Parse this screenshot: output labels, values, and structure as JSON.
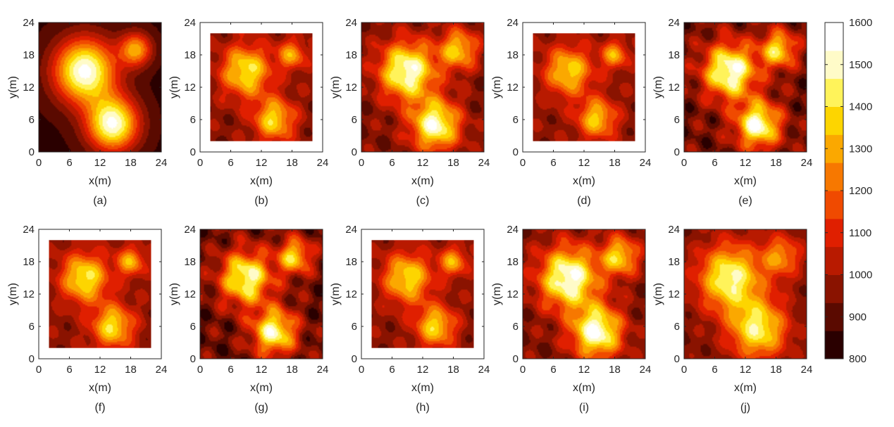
{
  "chart_data": {
    "type": "heatmap",
    "colorbar": {
      "min": 800,
      "max": 1600,
      "ticks": [
        "1600",
        "1500",
        "1400",
        "1300",
        "1200",
        "1100",
        "1000",
        "900",
        "800"
      ],
      "colors": [
        "#2a0000",
        "#5a0a00",
        "#8a1300",
        "#b81a00",
        "#e01f00",
        "#f04a00",
        "#f77800",
        "#fba800",
        "#fdd500",
        "#fff35a",
        "#fffbc8",
        "#ffffff"
      ]
    },
    "axes": {
      "xlabel": "x(m)",
      "ylabel": "y(m)",
      "xlim": [
        0,
        24
      ],
      "ylim": [
        0,
        24
      ],
      "ticks": [
        "0",
        "6",
        "12",
        "18",
        "24"
      ]
    },
    "panels": [
      {
        "label": "(a)",
        "domain": [
          0,
          24
        ],
        "sources": [
          [
            9,
            15,
            1560,
            4.2
          ],
          [
            14.5,
            5.2,
            1540,
            3.5
          ],
          [
            19,
            19,
            1300,
            2.2
          ]
        ],
        "base": 850,
        "ripple": 0
      },
      {
        "label": "(b)",
        "domain": [
          2,
          22
        ],
        "sources": [
          [
            9,
            15,
            1420,
            3.4
          ],
          [
            14.5,
            6,
            1380,
            2.8
          ],
          [
            18,
            18,
            1280,
            2.0
          ]
        ],
        "base": 960,
        "ripple": 70
      },
      {
        "label": "(c)",
        "domain": [
          0,
          24
        ],
        "sources": [
          [
            9,
            15,
            1540,
            3.8
          ],
          [
            14.5,
            5,
            1520,
            3.3
          ],
          [
            19,
            19,
            1360,
            2.6
          ]
        ],
        "base": 950,
        "ripple": 80
      },
      {
        "label": "(d)",
        "domain": [
          2,
          22
        ],
        "sources": [
          [
            9,
            15,
            1380,
            3.2
          ],
          [
            14.5,
            6.2,
            1360,
            2.6
          ],
          [
            18,
            18,
            1300,
            1.8
          ]
        ],
        "base": 970,
        "ripple": 65
      },
      {
        "label": "(e)",
        "domain": [
          0,
          24
        ],
        "sources": [
          [
            9,
            15,
            1560,
            3.6
          ],
          [
            14.5,
            5,
            1540,
            3.0
          ],
          [
            18.5,
            19,
            1400,
            2.4
          ]
        ],
        "base": 930,
        "ripple": 110
      },
      {
        "label": "(f)",
        "domain": [
          2,
          22
        ],
        "sources": [
          [
            9,
            15,
            1430,
            3.2
          ],
          [
            14.5,
            6,
            1400,
            2.8
          ],
          [
            18,
            18,
            1310,
            1.9
          ]
        ],
        "base": 970,
        "ripple": 60
      },
      {
        "label": "(g)",
        "domain": [
          0,
          24
        ],
        "sources": [
          [
            9,
            15,
            1500,
            3.5
          ],
          [
            14.5,
            5,
            1490,
            3.0
          ],
          [
            18.5,
            19,
            1380,
            2.3
          ]
        ],
        "base": 920,
        "ripple": 115
      },
      {
        "label": "(h)",
        "domain": [
          2,
          22
        ],
        "sources": [
          [
            9,
            15,
            1400,
            3.3
          ],
          [
            14.5,
            6,
            1380,
            2.7
          ],
          [
            18,
            18,
            1300,
            1.9
          ]
        ],
        "base": 965,
        "ripple": 65
      },
      {
        "label": "(i)",
        "domain": [
          0,
          24
        ],
        "sources": [
          [
            9,
            15,
            1560,
            4.0
          ],
          [
            14.5,
            5,
            1550,
            3.4
          ],
          [
            19,
            19,
            1380,
            2.5
          ]
        ],
        "base": 950,
        "ripple": 85
      },
      {
        "label": "(j)",
        "domain": [
          0,
          24
        ],
        "sources": [
          [
            9,
            15,
            1480,
            4.3
          ],
          [
            14.5,
            5.5,
            1440,
            3.9
          ],
          [
            19,
            19,
            1260,
            2.7
          ]
        ],
        "base": 950,
        "ripple": 55
      }
    ]
  }
}
